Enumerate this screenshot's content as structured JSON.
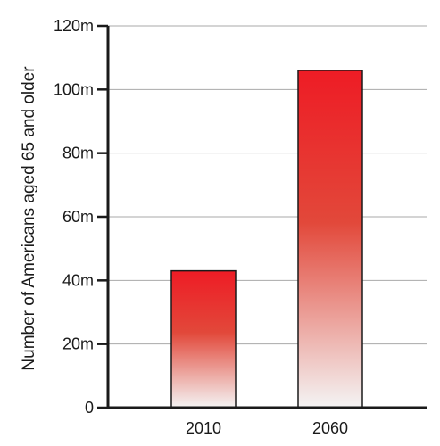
{
  "chart_data": {
    "type": "bar",
    "categories": [
      "2010",
      "2060"
    ],
    "values": [
      43,
      106
    ],
    "title": "",
    "xlabel": "",
    "ylabel": "Number of Americans aged 65 and older",
    "ylim": [
      0,
      120
    ],
    "yticks": [
      0,
      20,
      40,
      60,
      80,
      100,
      120
    ],
    "ytick_labels": [
      "0",
      "20m",
      "40m",
      "60m",
      "80m",
      "100m",
      "120m"
    ],
    "grid": true,
    "legend": "none",
    "colors": {
      "bar_top": "#ee1c25",
      "bar_mid": "#e2483a",
      "bar_bottom": "#f4f4f4",
      "grid": "#aaaaaa",
      "axis": "#1a1a1a"
    }
  }
}
